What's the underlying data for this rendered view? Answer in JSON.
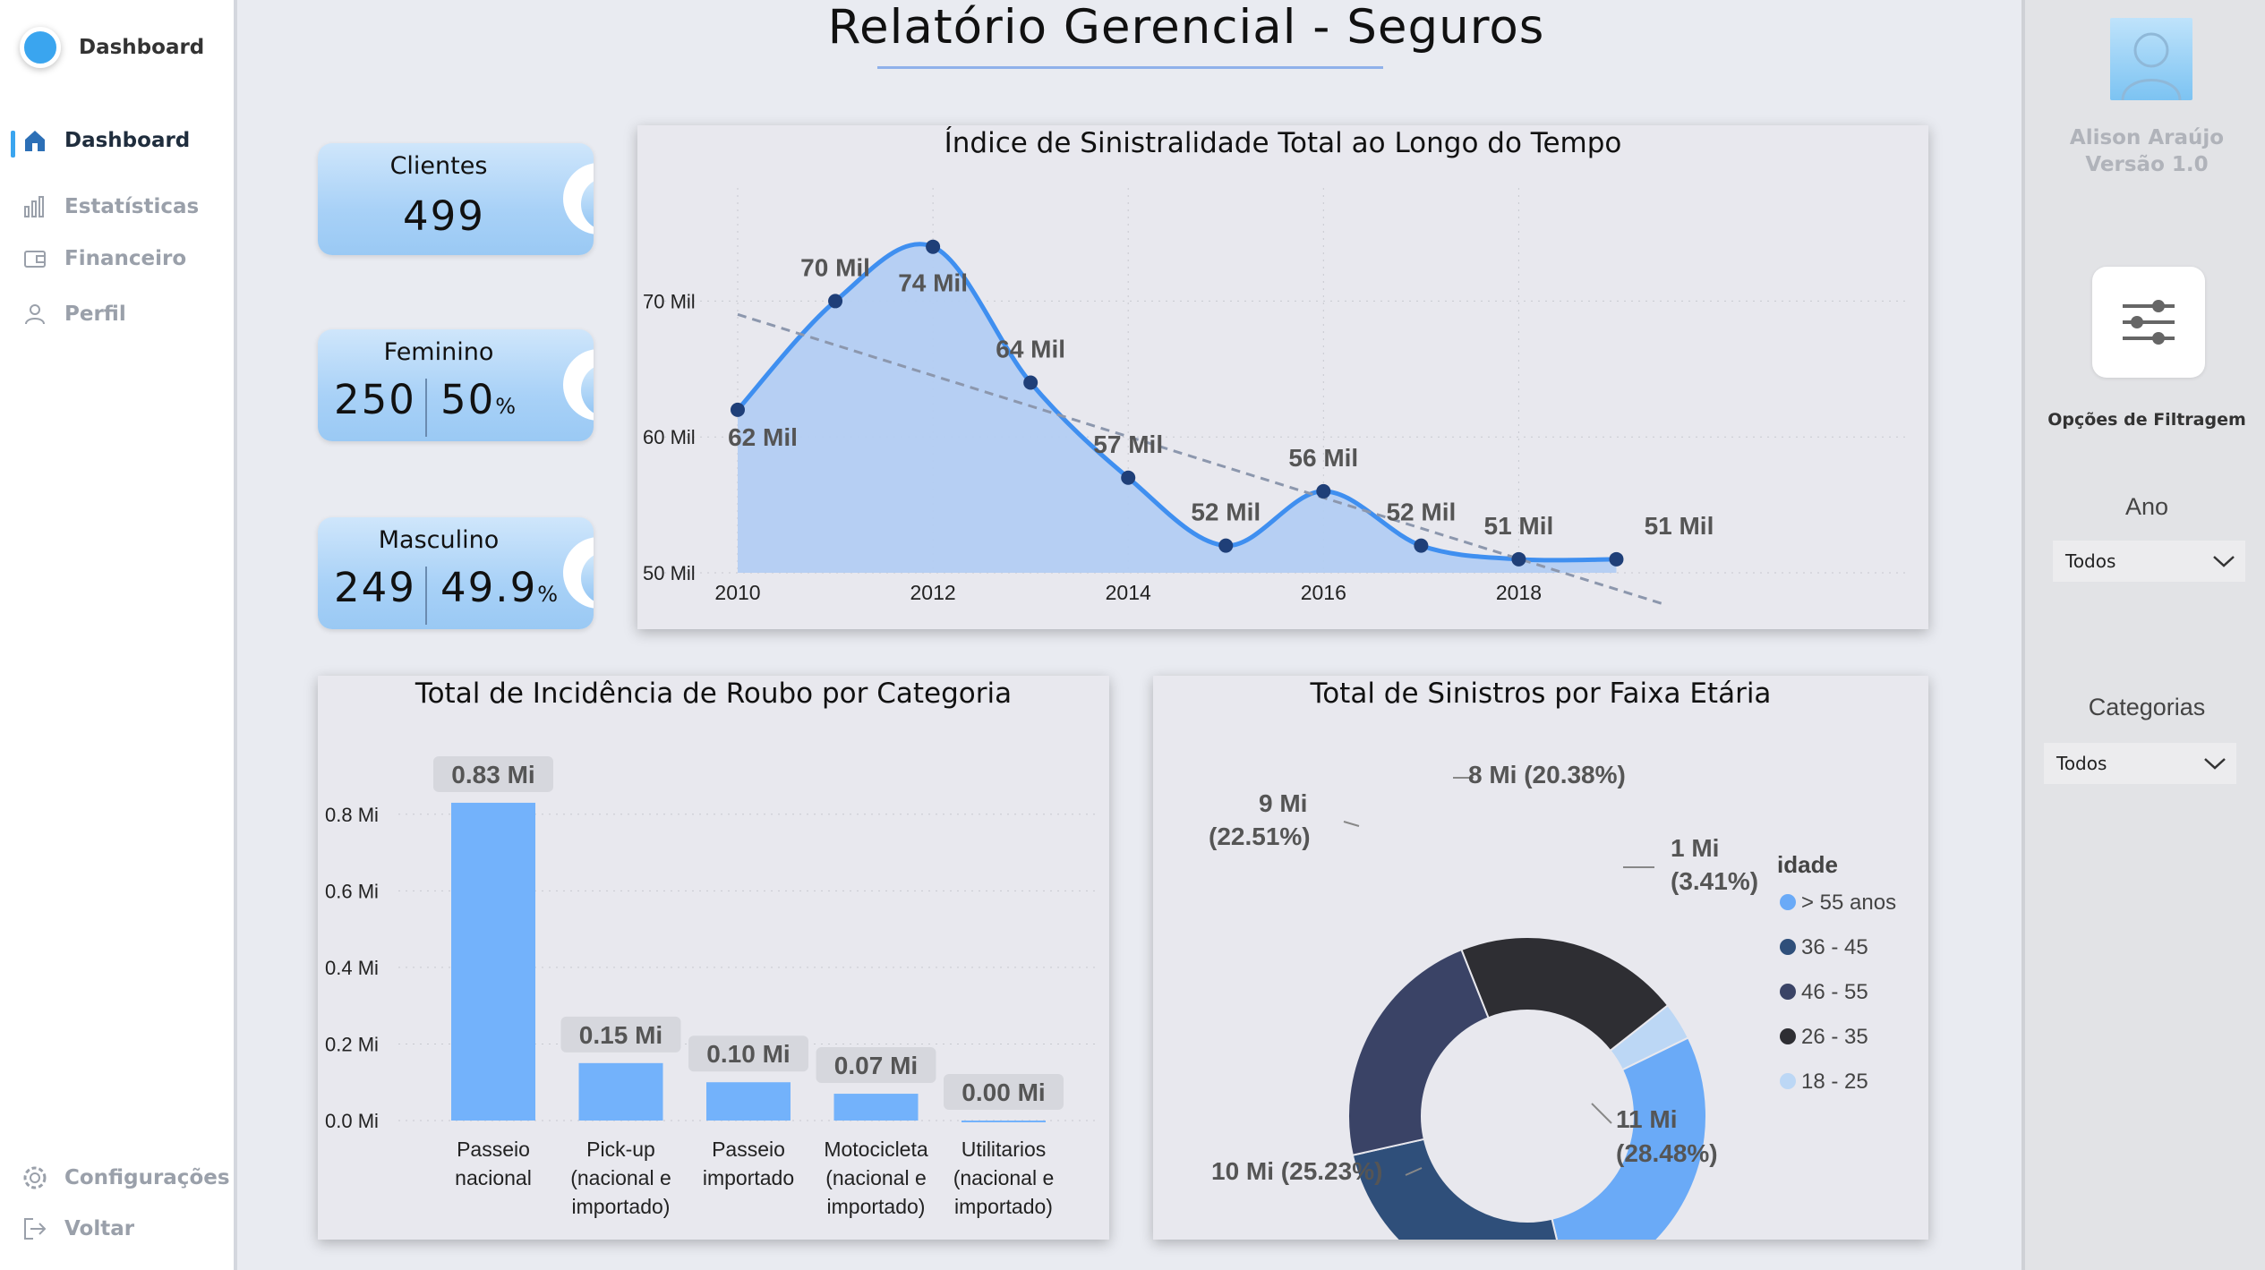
{
  "sidebar": {
    "brand": "Dashboard",
    "items": [
      {
        "label": "Dashboard",
        "icon": "home-icon",
        "active": true
      },
      {
        "label": "Estatísticas",
        "icon": "bar-chart-icon",
        "active": false
      },
      {
        "label": "Financeiro",
        "icon": "wallet-icon",
        "active": false
      },
      {
        "label": "Perfil",
        "icon": "user-icon",
        "active": false
      }
    ],
    "bottom": [
      {
        "label": "Configurações",
        "icon": "gear-icon"
      },
      {
        "label": "Voltar",
        "icon": "logout-icon"
      }
    ]
  },
  "header": {
    "title": "Relatório Gerencial - Seguros"
  },
  "kpis": {
    "clientes": {
      "label": "Clientes",
      "value": "499"
    },
    "feminino": {
      "label": "Feminino",
      "count": "250",
      "pct": "50",
      "pct_sign": "%"
    },
    "masculino": {
      "label": "Masculino",
      "count": "249",
      "pct": "49.9",
      "pct_sign": "%"
    }
  },
  "right_panel": {
    "user_name": "Alison Araújo",
    "version": "Versão 1.0",
    "filter_button": "Opções de Filtragem",
    "filters": [
      {
        "title": "Ano",
        "value": "Todos"
      },
      {
        "title": "Categorias",
        "value": "Todos"
      }
    ]
  },
  "colors": {
    "accent": "#3aa5ef",
    "line": "#3f8ff0",
    "area": "#b3cdf2",
    "bar": "#73b2fb"
  },
  "chart_data": [
    {
      "type": "line",
      "title": "Índice de Sinistralidade Total ao Longo do Tempo",
      "x": [
        2010,
        2011,
        2012,
        2013,
        2014,
        2015,
        2016,
        2017,
        2018,
        2019
      ],
      "values": [
        62,
        70,
        74,
        64,
        57,
        52,
        56,
        52,
        51,
        51
      ],
      "data_labels": [
        "62 Mil",
        "70 Mil",
        "74 Mil",
        "64 Mil",
        "57 Mil",
        "52 Mil",
        "56 Mil",
        "52 Mil",
        "51 Mil",
        "51 Mil"
      ],
      "x_ticks": [
        "2010",
        "2012",
        "2014",
        "2016",
        "2018"
      ],
      "y_ticks": [
        "50 Mil",
        "60 Mil",
        "70 Mil"
      ],
      "ylim": [
        50,
        78
      ],
      "trend_line": true,
      "grid": true
    },
    {
      "type": "bar",
      "title": "Total de Incidência de Roubo por Categoria",
      "categories": [
        [
          "Passeio",
          "nacional"
        ],
        [
          "Pick-up",
          "(nacional e",
          "importado)"
        ],
        [
          "Passeio",
          "importado"
        ],
        [
          "Motocicleta",
          "(nacional e",
          "importado)"
        ],
        [
          "Utilitarios",
          "(nacional e",
          "importado)"
        ]
      ],
      "values": [
        0.83,
        0.15,
        0.1,
        0.07,
        0.0
      ],
      "data_labels": [
        "0.83 Mi",
        "0.15 Mi",
        "0.10 Mi",
        "0.07 Mi",
        "0.00 Mi"
      ],
      "y_ticks": [
        "0.0 Mi",
        "0.2 Mi",
        "0.4 Mi",
        "0.6 Mi",
        "0.8 Mi"
      ],
      "ylim": [
        0,
        0.9
      ],
      "grid": true
    },
    {
      "type": "pie",
      "title": "Total de Sinistros por Faixa Etária",
      "legend_title": "idade",
      "legend": [
        "> 55 anos",
        "36 - 45",
        "46 - 55",
        "26 - 35",
        "18 - 25"
      ],
      "slices": [
        {
          "name": "26 - 35",
          "value": 20.38,
          "color": "#2e2e33",
          "label": [
            "8 Mi (20.38%)"
          ]
        },
        {
          "name": "18 - 25",
          "value": 3.41,
          "color": "#bcd7f5",
          "label": [
            "1 Mi",
            "(3.41%)"
          ]
        },
        {
          "name": "> 55 anos",
          "value": 28.48,
          "color": "#6aaaf7",
          "label": [
            "11 Mi",
            "(28.48%)"
          ]
        },
        {
          "name": "36 - 45",
          "value": 25.23,
          "color": "#2f4f7a",
          "label": [
            "10 Mi (25.23%)"
          ]
        },
        {
          "name": "46 - 55",
          "value": 22.51,
          "color": "#3a4366",
          "label": [
            "9 Mi",
            "(22.51%)"
          ]
        }
      ]
    }
  ]
}
